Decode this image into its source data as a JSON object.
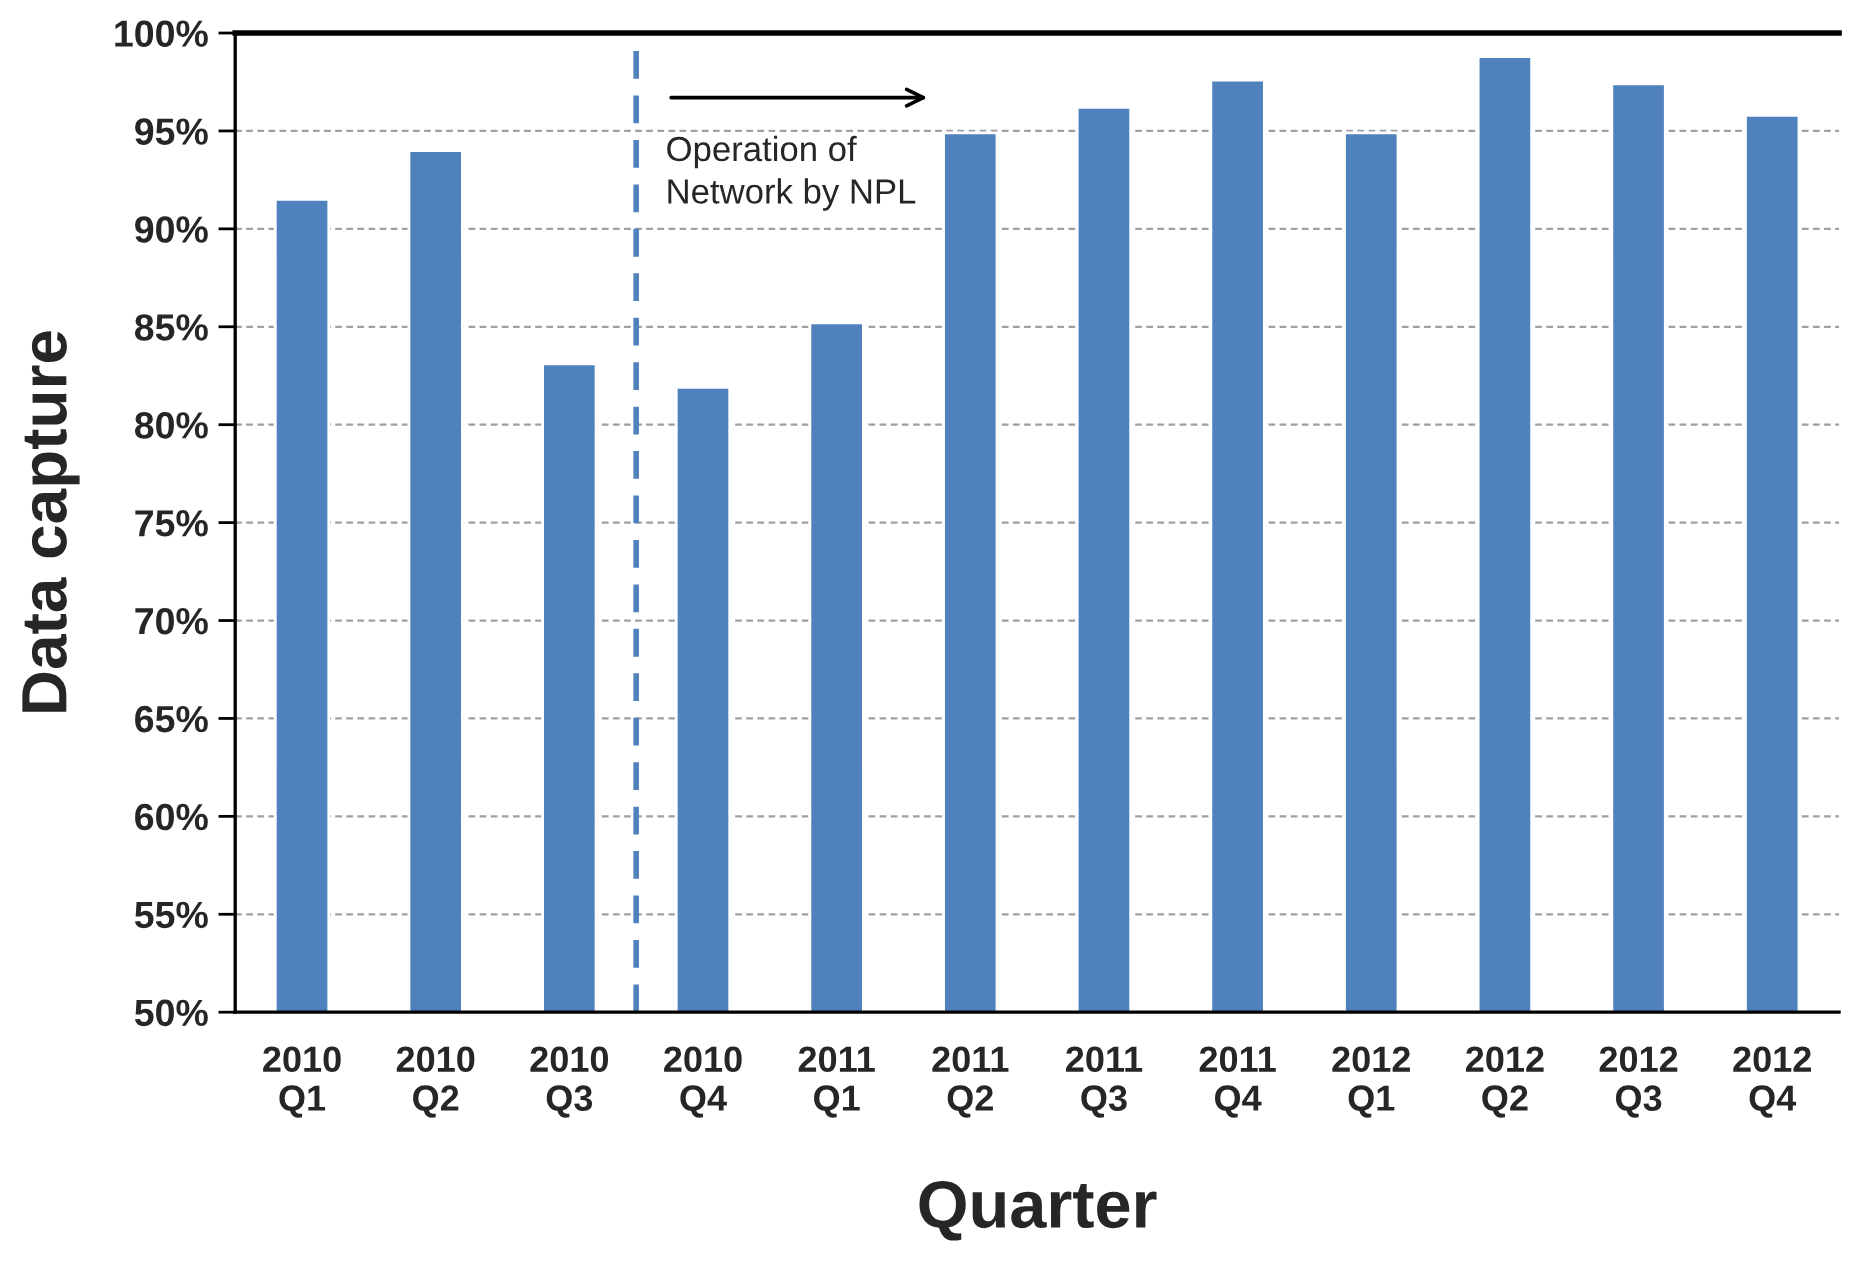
{
  "chart_data": {
    "type": "bar",
    "xlabel": "Quarter",
    "ylabel": "Data capture",
    "categories": [
      "2010\nQ1",
      "2010\nQ2",
      "2010\nQ3",
      "2010\nQ4",
      "2011\nQ1",
      "2011\nQ2",
      "2011\nQ3",
      "2011\nQ4",
      "2012\nQ1",
      "2012\nQ2",
      "2012\nQ3",
      "2012\nQ4"
    ],
    "values": [
      91.5,
      94.0,
      83.1,
      81.9,
      85.2,
      94.9,
      96.2,
      97.6,
      94.9,
      98.8,
      97.4,
      95.8
    ],
    "color": "#4f81bd",
    "ylim": [
      50,
      100
    ],
    "yticks": [
      {
        "value": 50,
        "label": "50%"
      },
      {
        "value": 55,
        "label": "55%"
      },
      {
        "value": 60,
        "label": "60%"
      },
      {
        "value": 65,
        "label": "65%"
      },
      {
        "value": 70,
        "label": "70%"
      },
      {
        "value": 75,
        "label": "75%"
      },
      {
        "value": 80,
        "label": "80%"
      },
      {
        "value": 85,
        "label": "85%"
      },
      {
        "value": 90,
        "label": "90%"
      },
      {
        "value": 95,
        "label": "95%"
      },
      {
        "value": 100,
        "label": "100%"
      }
    ],
    "grid": "y",
    "ref_lines": [
      {
        "axis": "x",
        "value": "2010\nQ4",
        "color": "#4f81bd",
        "line_style": "dashed"
      }
    ],
    "annotations": [
      "Operation of\nNetwork by NPL"
    ]
  }
}
